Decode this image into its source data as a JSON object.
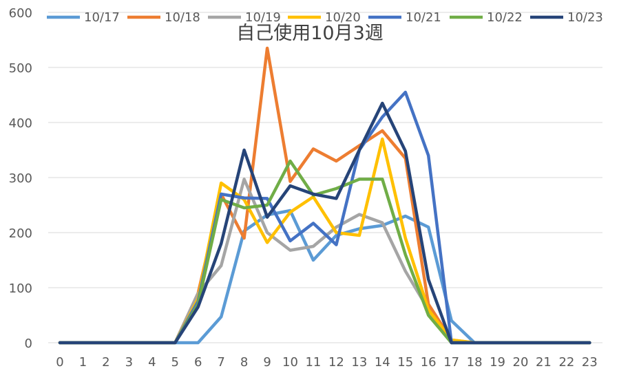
{
  "chart_data": {
    "type": "line",
    "title": "自己使用10月3週",
    "xlabel": "",
    "ylabel": "",
    "ylim": [
      0,
      600
    ],
    "yticks": [
      0,
      100,
      200,
      300,
      400,
      500,
      600
    ],
    "categories": [
      "0",
      "1",
      "2",
      "3",
      "4",
      "5",
      "6",
      "7",
      "8",
      "9",
      "10",
      "11",
      "12",
      "13",
      "14",
      "15",
      "16",
      "17",
      "18",
      "19",
      "20",
      "21",
      "22",
      "23"
    ],
    "grid": "horizontal",
    "legend_position": "top",
    "series": [
      {
        "name": "10/17",
        "color": "#5b9bd5",
        "values": [
          0,
          0,
          0,
          0,
          0,
          0,
          0,
          47,
          203,
          232,
          240,
          150,
          195,
          207,
          213,
          230,
          210,
          40,
          0,
          0,
          0,
          0,
          0,
          0
        ]
      },
      {
        "name": "10/18",
        "color": "#ed7d31",
        "values": [
          0,
          0,
          0,
          0,
          0,
          0,
          90,
          270,
          190,
          535,
          293,
          352,
          330,
          358,
          385,
          335,
          70,
          5,
          0,
          0,
          0,
          0,
          0,
          0
        ]
      },
      {
        "name": "10/19",
        "color": "#a5a5a5",
        "values": [
          0,
          0,
          0,
          0,
          0,
          0,
          90,
          140,
          297,
          200,
          168,
          175,
          210,
          233,
          218,
          130,
          60,
          0,
          0,
          0,
          0,
          0,
          0,
          0
        ]
      },
      {
        "name": "10/20",
        "color": "#ffc000",
        "values": [
          0,
          0,
          0,
          0,
          0,
          0,
          80,
          290,
          260,
          182,
          237,
          265,
          200,
          195,
          370,
          190,
          60,
          5,
          0,
          0,
          0,
          0,
          0,
          0
        ]
      },
      {
        "name": "10/21",
        "color": "#4472c4",
        "values": [
          0,
          0,
          0,
          0,
          0,
          0,
          75,
          270,
          263,
          262,
          185,
          217,
          178,
          350,
          410,
          455,
          340,
          0,
          0,
          0,
          0,
          0,
          0,
          0
        ]
      },
      {
        "name": "10/22",
        "color": "#70ad47",
        "values": [
          0,
          0,
          0,
          0,
          0,
          0,
          70,
          260,
          245,
          250,
          330,
          268,
          280,
          297,
          297,
          160,
          50,
          0,
          0,
          0,
          0,
          0,
          0,
          0
        ]
      },
      {
        "name": "10/23",
        "color": "#264478",
        "values": [
          0,
          0,
          0,
          0,
          0,
          0,
          65,
          180,
          350,
          228,
          285,
          270,
          262,
          350,
          435,
          348,
          115,
          0,
          0,
          0,
          0,
          0,
          0,
          0
        ]
      }
    ]
  }
}
